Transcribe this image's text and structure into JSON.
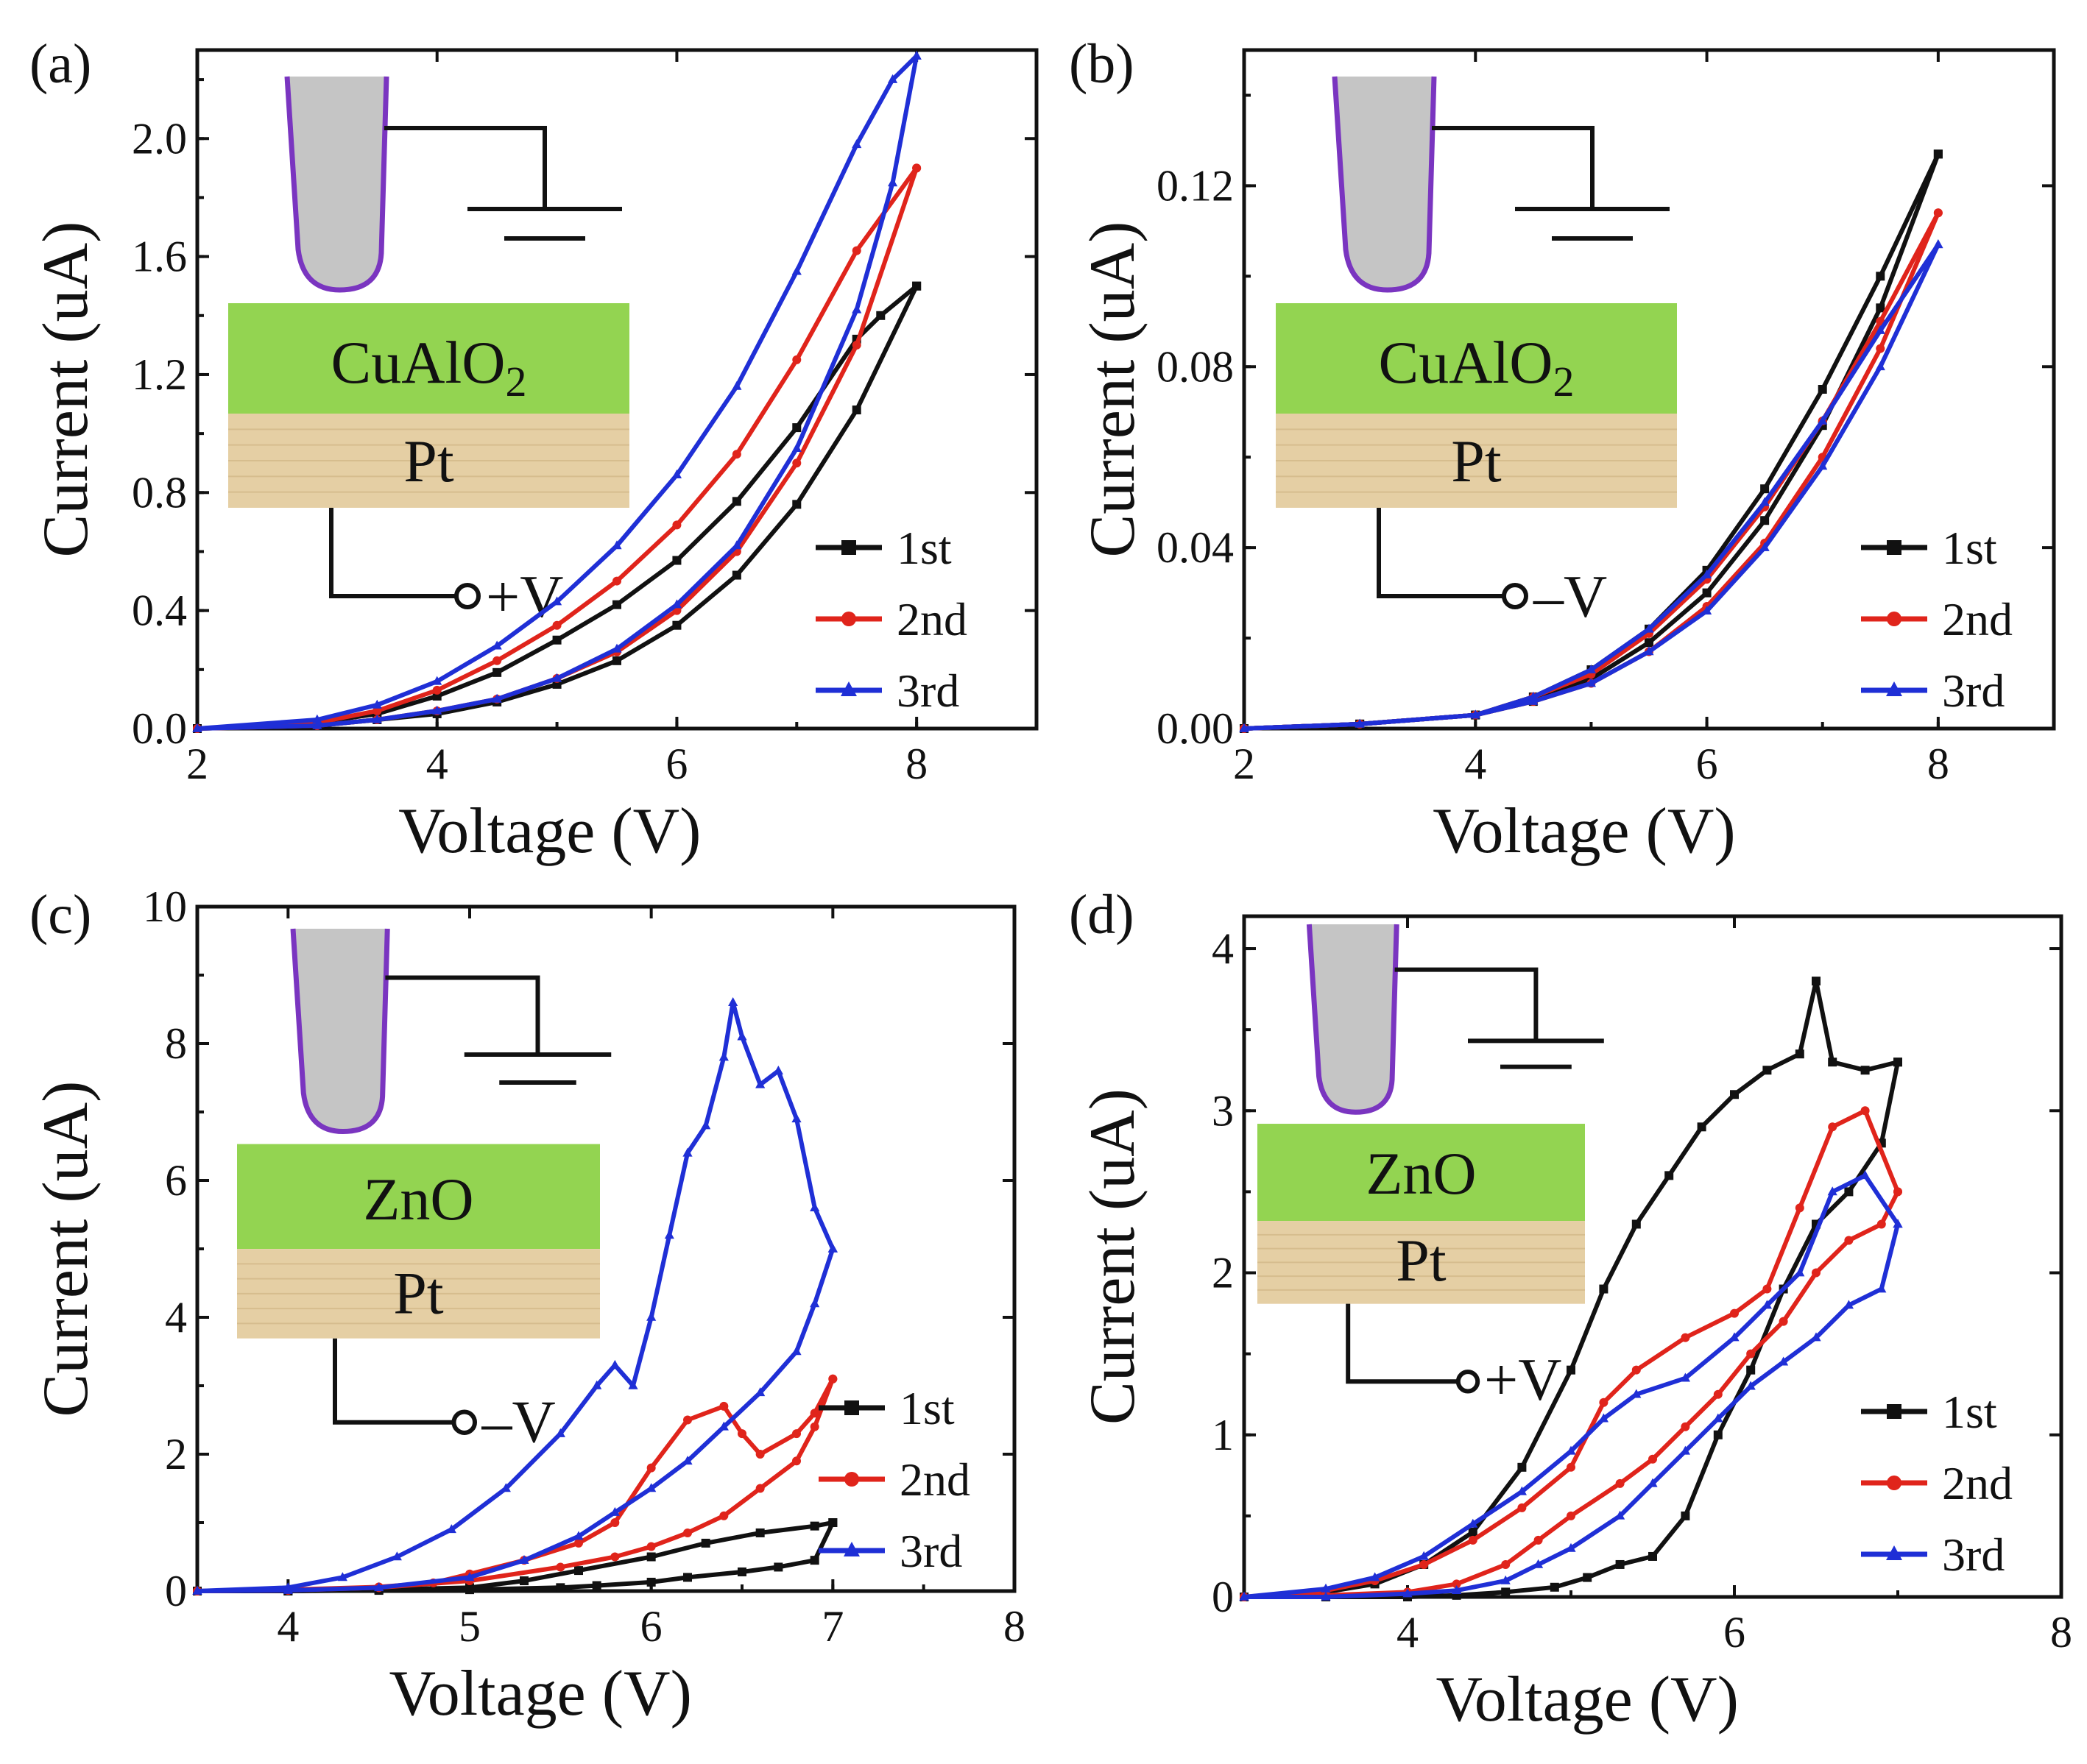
{
  "figure": {
    "colors": {
      "black": "#111111",
      "red": "#e0241b",
      "blue": "#1f2fd6",
      "film": "#93d451",
      "pt": "#e5cfa4",
      "tip": "#c5c5c5",
      "tip_outline": "#7a35c0"
    }
  },
  "chart_data": [
    {
      "type": "line",
      "panel_label": "(a)",
      "xlabel": "Voltage (V)",
      "ylabel": "Current (uA)",
      "xlim": [
        2,
        9
      ],
      "ylim": [
        0,
        2.3
      ],
      "xticks": [
        2,
        4,
        6,
        8
      ],
      "xtick_labels": [
        "2",
        "4",
        "6",
        "8"
      ],
      "yticks": [
        0,
        0.4,
        0.8,
        1.2,
        1.6,
        2.0
      ],
      "ytick_labels": [
        "0.0",
        "0.4",
        "0.8",
        "1.2",
        "1.6",
        "2.0"
      ],
      "inset": {
        "film": "CuAlO",
        "film_subscript": "2",
        "substrate": "Pt",
        "bias": "+V"
      },
      "legend": [
        "1st",
        "2nd",
        "3rd"
      ],
      "series": [
        {
          "name": "1st",
          "color": "#111111",
          "marker": "square",
          "sweep_up": {
            "x": [
              2,
              3,
              3.5,
              4,
              4.5,
              5,
              5.5,
              6,
              6.5,
              7,
              7.5,
              8
            ],
            "y": [
              0,
              0.01,
              0.03,
              0.05,
              0.09,
              0.15,
              0.23,
              0.35,
              0.52,
              0.76,
              1.08,
              1.5
            ]
          },
          "sweep_down": {
            "x": [
              8,
              7.7,
              7.5,
              7,
              6.5,
              6,
              5.5,
              5,
              4.5,
              4,
              3.5,
              3,
              2
            ],
            "y": [
              1.5,
              1.4,
              1.32,
              1.02,
              0.77,
              0.57,
              0.42,
              0.3,
              0.19,
              0.11,
              0.05,
              0.02,
              0
            ]
          }
        },
        {
          "name": "2nd",
          "color": "#e0241b",
          "marker": "circle",
          "sweep_up": {
            "x": [
              2,
              3,
              3.5,
              4,
              4.5,
              5,
              5.5,
              6,
              6.5,
              7,
              7.5,
              8
            ],
            "y": [
              0,
              0.01,
              0.03,
              0.06,
              0.1,
              0.17,
              0.26,
              0.4,
              0.6,
              0.9,
              1.3,
              1.9
            ]
          },
          "sweep_down": {
            "x": [
              8,
              7.5,
              7,
              6.5,
              6,
              5.5,
              5,
              4.5,
              4,
              3.5,
              3,
              2
            ],
            "y": [
              1.9,
              1.62,
              1.25,
              0.93,
              0.69,
              0.5,
              0.35,
              0.23,
              0.13,
              0.06,
              0.02,
              0
            ]
          }
        },
        {
          "name": "3rd",
          "color": "#1f2fd6",
          "marker": "triangle",
          "sweep_up": {
            "x": [
              2,
              3,
              3.5,
              4,
              4.5,
              5,
              5.5,
              6,
              6.5,
              7,
              7.5,
              7.8,
              8
            ],
            "y": [
              0,
              0.01,
              0.03,
              0.06,
              0.1,
              0.17,
              0.27,
              0.42,
              0.62,
              0.95,
              1.42,
              1.85,
              2.28
            ]
          },
          "sweep_down": {
            "x": [
              8,
              7.8,
              7.5,
              7,
              6.5,
              6,
              5.5,
              5,
              4.5,
              4,
              3.5,
              3,
              2
            ],
            "y": [
              2.28,
              2.2,
              1.98,
              1.55,
              1.16,
              0.86,
              0.62,
              0.43,
              0.28,
              0.16,
              0.08,
              0.03,
              0
            ]
          }
        }
      ]
    },
    {
      "type": "line",
      "panel_label": "(b)",
      "xlabel": "Voltage (V)",
      "ylabel": "Current (uA)",
      "xlim": [
        2,
        9
      ],
      "ylim": [
        0,
        0.15
      ],
      "xticks": [
        2,
        4,
        6,
        8
      ],
      "xtick_labels": [
        "2",
        "4",
        "6",
        "8"
      ],
      "yticks": [
        0,
        0.04,
        0.08,
        0.12
      ],
      "ytick_labels": [
        "0.00",
        "0.04",
        "0.08",
        "0.12"
      ],
      "inset": {
        "film": "CuAlO",
        "film_subscript": "2",
        "substrate": "Pt",
        "bias": "–V"
      },
      "legend": [
        "1st",
        "2nd",
        "3rd"
      ],
      "series": [
        {
          "name": "1st",
          "color": "#111111",
          "marker": "square",
          "sweep_up": {
            "x": [
              2,
              3,
              4,
              4.5,
              5,
              5.5,
              6,
              6.5,
              7,
              7.5,
              8
            ],
            "y": [
              0,
              0.001,
              0.003,
              0.006,
              0.011,
              0.019,
              0.03,
              0.046,
              0.067,
              0.093,
              0.127
            ]
          },
          "sweep_down": {
            "x": [
              8,
              7.5,
              7,
              6.5,
              6,
              5.5,
              5,
              4.5,
              4,
              3,
              2
            ],
            "y": [
              0.127,
              0.1,
              0.075,
              0.053,
              0.035,
              0.022,
              0.013,
              0.007,
              0.003,
              0.001,
              0
            ]
          }
        },
        {
          "name": "2nd",
          "color": "#e0241b",
          "marker": "circle",
          "sweep_up": {
            "x": [
              2,
              3,
              4,
              4.5,
              5,
              5.5,
              6,
              6.5,
              7,
              7.5,
              8
            ],
            "y": [
              0,
              0.001,
              0.003,
              0.006,
              0.01,
              0.017,
              0.027,
              0.041,
              0.06,
              0.084,
              0.114
            ]
          },
          "sweep_down": {
            "x": [
              8,
              7.5,
              7,
              6.5,
              6,
              5.5,
              5,
              4.5,
              4,
              3,
              2
            ],
            "y": [
              0.114,
              0.09,
              0.068,
              0.049,
              0.033,
              0.021,
              0.012,
              0.007,
              0.003,
              0.001,
              0
            ]
          }
        },
        {
          "name": "3rd",
          "color": "#1f2fd6",
          "marker": "triangle",
          "sweep_up": {
            "x": [
              2,
              3,
              4,
              4.5,
              5,
              5.5,
              6,
              6.5,
              7,
              7.5,
              8
            ],
            "y": [
              0,
              0.001,
              0.003,
              0.006,
              0.01,
              0.017,
              0.026,
              0.04,
              0.058,
              0.08,
              0.107
            ]
          },
          "sweep_down": {
            "x": [
              8,
              7.5,
              7,
              6.5,
              6,
              5.5,
              5,
              4.5,
              4,
              3,
              2
            ],
            "y": [
              0.107,
              0.088,
              0.068,
              0.05,
              0.034,
              0.022,
              0.013,
              0.007,
              0.003,
              0.001,
              0
            ]
          }
        }
      ]
    },
    {
      "type": "line",
      "panel_label": "(c)",
      "xlabel": "Voltage (V)",
      "ylabel": "Current (uA)",
      "xlim": [
        3.5,
        8
      ],
      "ylim": [
        0,
        10
      ],
      "xticks": [
        4,
        5,
        6,
        7,
        8
      ],
      "xtick_labels": [
        "4",
        "5",
        "6",
        "7",
        "8"
      ],
      "yticks": [
        0,
        2,
        4,
        6,
        8,
        10
      ],
      "ytick_labels": [
        "0",
        "2",
        "4",
        "6",
        "8",
        "10"
      ],
      "inset": {
        "film": "ZnO",
        "film_subscript": "",
        "substrate": "Pt",
        "bias": "–V"
      },
      "legend": [
        "1st",
        "2nd",
        "3rd"
      ],
      "series": [
        {
          "name": "1st",
          "color": "#111111",
          "marker": "square",
          "sweep_up": {
            "x": [
              3.5,
              4,
              4.5,
              5,
              5.3,
              5.6,
              6,
              6.3,
              6.6,
              6.9,
              7
            ],
            "y": [
              0,
              0,
              0.02,
              0.05,
              0.15,
              0.3,
              0.5,
              0.7,
              0.85,
              0.95,
              1.0
            ]
          },
          "sweep_down": {
            "x": [
              7,
              6.9,
              6.7,
              6.5,
              6.2,
              6,
              5.7,
              5.5,
              5,
              4.5,
              4,
              3.5
            ],
            "y": [
              1.0,
              0.45,
              0.35,
              0.28,
              0.2,
              0.13,
              0.08,
              0.05,
              0.02,
              0.01,
              0,
              0
            ]
          }
        },
        {
          "name": "2nd",
          "color": "#e0241b",
          "marker": "circle",
          "sweep_up": {
            "x": [
              3.5,
              4,
              4.5,
              4.8,
              5,
              5.3,
              5.6,
              5.8,
              6,
              6.2,
              6.4,
              6.5,
              6.6,
              6.8,
              6.9,
              7
            ],
            "y": [
              0,
              0.02,
              0.06,
              0.12,
              0.25,
              0.45,
              0.7,
              1.0,
              1.8,
              2.5,
              2.7,
              2.3,
              2.0,
              2.3,
              2.6,
              3.1
            ]
          },
          "sweep_down": {
            "x": [
              7,
              6.9,
              6.8,
              6.6,
              6.4,
              6.2,
              6,
              5.8,
              5.5,
              5,
              4.5,
              4,
              3.5
            ],
            "y": [
              3.1,
              2.4,
              1.9,
              1.5,
              1.1,
              0.85,
              0.65,
              0.5,
              0.35,
              0.15,
              0.05,
              0.01,
              0
            ]
          }
        },
        {
          "name": "3rd",
          "color": "#1f2fd6",
          "marker": "triangle",
          "sweep_up": {
            "x": [
              3.5,
              4,
              4.3,
              4.6,
              4.9,
              5.2,
              5.5,
              5.7,
              5.8,
              5.9,
              6,
              6.1,
              6.2,
              6.3,
              6.4,
              6.45,
              6.5,
              6.6,
              6.7,
              6.8,
              6.9,
              7
            ],
            "y": [
              0,
              0.05,
              0.2,
              0.5,
              0.9,
              1.5,
              2.3,
              3.0,
              3.3,
              3.0,
              4.0,
              5.2,
              6.4,
              6.8,
              7.8,
              8.6,
              8.1,
              7.4,
              7.6,
              6.9,
              5.6,
              5.0
            ]
          },
          "sweep_down": {
            "x": [
              7,
              6.9,
              6.8,
              6.6,
              6.4,
              6.2,
              6,
              5.8,
              5.6,
              5.3,
              5,
              4.5,
              4,
              3.5
            ],
            "y": [
              5.0,
              4.2,
              3.5,
              2.9,
              2.4,
              1.9,
              1.5,
              1.15,
              0.8,
              0.45,
              0.2,
              0.05,
              0.01,
              0
            ]
          }
        }
      ]
    },
    {
      "type": "line",
      "panel_label": "(d)",
      "xlabel": "Voltage (V)",
      "ylabel": "Current (uA)",
      "xlim": [
        3,
        8
      ],
      "ylim": [
        0,
        4.2
      ],
      "xticks": [
        4,
        6,
        8
      ],
      "xtick_labels": [
        "4",
        "6",
        "8"
      ],
      "yticks": [
        0,
        1,
        2,
        3,
        4
      ],
      "ytick_labels": [
        "0",
        "1",
        "2",
        "3",
        "4"
      ],
      "inset": {
        "film": "ZnO",
        "film_subscript": "",
        "substrate": "Pt",
        "bias": "+V"
      },
      "legend": [
        "1st",
        "2nd",
        "3rd"
      ],
      "series": [
        {
          "name": "1st",
          "color": "#111111",
          "marker": "square",
          "sweep_up": {
            "x": [
              3,
              3.5,
              3.8,
              4.1,
              4.4,
              4.7,
              5,
              5.2,
              5.4,
              5.6,
              5.8,
              6,
              6.2,
              6.4,
              6.5,
              6.6,
              6.8,
              7
            ],
            "y": [
              0,
              0.03,
              0.08,
              0.2,
              0.4,
              0.8,
              1.4,
              1.9,
              2.3,
              2.6,
              2.9,
              3.1,
              3.25,
              3.35,
              3.8,
              3.3,
              3.25,
              3.3
            ]
          },
          "sweep_down": {
            "x": [
              7,
              6.9,
              6.7,
              6.5,
              6.3,
              6.1,
              5.9,
              5.7,
              5.5,
              5.3,
              5.1,
              4.9,
              4.6,
              4.3,
              4,
              3.5,
              3
            ],
            "y": [
              3.3,
              2.8,
              2.5,
              2.3,
              1.9,
              1.4,
              1.0,
              0.5,
              0.25,
              0.2,
              0.12,
              0.06,
              0.03,
              0.01,
              0,
              0,
              0
            ]
          }
        },
        {
          "name": "2nd",
          "color": "#e0241b",
          "marker": "circle",
          "sweep_up": {
            "x": [
              3,
              3.5,
              3.8,
              4.1,
              4.4,
              4.7,
              5,
              5.2,
              5.4,
              5.7,
              6,
              6.2,
              6.4,
              6.6,
              6.8,
              7
            ],
            "y": [
              0,
              0.04,
              0.1,
              0.2,
              0.35,
              0.55,
              0.8,
              1.2,
              1.4,
              1.6,
              1.75,
              1.9,
              2.4,
              2.9,
              3.0,
              2.5
            ]
          },
          "sweep_down": {
            "x": [
              7,
              6.9,
              6.7,
              6.5,
              6.3,
              6.1,
              5.9,
              5.7,
              5.5,
              5.3,
              5,
              4.8,
              4.6,
              4.3,
              4,
              3.5,
              3
            ],
            "y": [
              2.5,
              2.3,
              2.2,
              2.0,
              1.7,
              1.5,
              1.25,
              1.05,
              0.85,
              0.7,
              0.5,
              0.35,
              0.2,
              0.08,
              0.03,
              0.01,
              0
            ]
          }
        },
        {
          "name": "3rd",
          "color": "#1f2fd6",
          "marker": "triangle",
          "sweep_up": {
            "x": [
              3,
              3.5,
              3.8,
              4.1,
              4.4,
              4.7,
              5,
              5.2,
              5.4,
              5.7,
              6,
              6.2,
              6.4,
              6.6,
              6.8,
              7
            ],
            "y": [
              0,
              0.05,
              0.12,
              0.25,
              0.45,
              0.65,
              0.9,
              1.1,
              1.25,
              1.35,
              1.6,
              1.8,
              2.0,
              2.5,
              2.6,
              2.3
            ]
          },
          "sweep_down": {
            "x": [
              7,
              6.9,
              6.7,
              6.5,
              6.3,
              6.1,
              5.9,
              5.7,
              5.5,
              5.3,
              5,
              4.8,
              4.6,
              4.3,
              4,
              3.5,
              3
            ],
            "y": [
              2.3,
              1.9,
              1.8,
              1.6,
              1.45,
              1.3,
              1.1,
              0.9,
              0.7,
              0.5,
              0.3,
              0.2,
              0.1,
              0.04,
              0.02,
              0,
              0
            ]
          }
        }
      ]
    }
  ]
}
